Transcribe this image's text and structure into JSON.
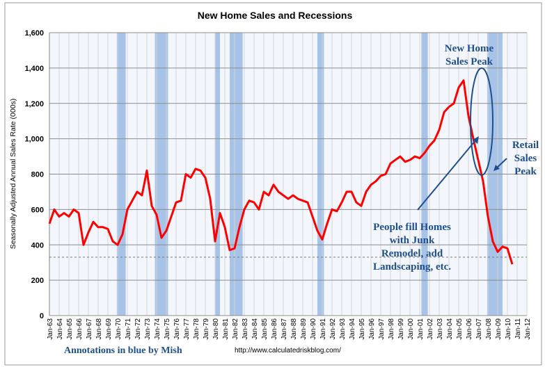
{
  "chart_data": {
    "type": "line",
    "title": "New Home Sales and Recessions",
    "xlabel": "",
    "ylabel": "Seasonally Adjusted Annual Sales Rate (000s)",
    "ylim": [
      0,
      1600
    ],
    "yticks": [
      "0",
      "200",
      "400",
      "600",
      "800",
      "1,000",
      "1,200",
      "1,400",
      "1,600"
    ],
    "xlim": [
      1963,
      2012
    ],
    "xtick_labels": [
      "Jan-63",
      "Jan-64",
      "Jan-65",
      "Jan-66",
      "Jan-67",
      "Jan-68",
      "Jan-69",
      "Jan-70",
      "Jan-71",
      "Jan-72",
      "Jan-73",
      "Jan-74",
      "Jan-75",
      "Jan-76",
      "Jan-77",
      "Jan-78",
      "Jan-79",
      "Jan-80",
      "Jan-81",
      "Jan-82",
      "Jan-83",
      "Jan-84",
      "Jan-85",
      "Jan-86",
      "Jan-87",
      "Jan-88",
      "Jan-89",
      "Jan-90",
      "Jan-91",
      "Jan-92",
      "Jan-93",
      "Jan-94",
      "Jan-95",
      "Jan-96",
      "Jan-97",
      "Jan-98",
      "Jan-99",
      "Jan-00",
      "Jan-01",
      "Jan-02",
      "Jan-03",
      "Jan-04",
      "Jan-05",
      "Jan-06",
      "Jan-07",
      "Jan-08",
      "Jan-09",
      "Jan-10",
      "Jan-11",
      "Jan-12"
    ],
    "grid": true,
    "series": [
      {
        "name": "New Home Sales",
        "color": "#ff0000",
        "x_start": 1963,
        "x_step": 0.5,
        "values": [
          520,
          600,
          560,
          580,
          560,
          600,
          580,
          400,
          470,
          530,
          500,
          500,
          490,
          420,
          400,
          460,
          600,
          650,
          700,
          680,
          820,
          620,
          570,
          440,
          480,
          560,
          640,
          650,
          800,
          780,
          830,
          820,
          780,
          660,
          420,
          580,
          500,
          370,
          380,
          500,
          600,
          650,
          640,
          600,
          700,
          680,
          740,
          700,
          680,
          660,
          680,
          660,
          650,
          640,
          560,
          480,
          430,
          520,
          600,
          590,
          640,
          700,
          700,
          640,
          620,
          700,
          740,
          760,
          790,
          800,
          860,
          880,
          900,
          870,
          880,
          900,
          890,
          920,
          960,
          990,
          1050,
          1150,
          1180,
          1200,
          1290,
          1330,
          1130,
          1000,
          880,
          760,
          560,
          420,
          360,
          390,
          380,
          290
        ]
      }
    ],
    "recessions": [
      [
        1969.92,
        1970.83
      ],
      [
        1973.83,
        1975.17
      ],
      [
        1980.0,
        1980.5
      ],
      [
        1981.5,
        1982.83
      ],
      [
        1990.5,
        1991.17
      ],
      [
        2001.17,
        2001.83
      ],
      [
        2007.92,
        2009.5
      ]
    ],
    "reference_line": {
      "value": 330,
      "style": "dashed"
    },
    "annotations": {
      "peak": [
        "New Home",
        "Sales Peak"
      ],
      "retail": [
        "Retail",
        "Sales",
        "Peak"
      ],
      "junk": [
        "People fill Homes",
        "with Junk",
        "Remodel, add",
        "Landscaping, etc."
      ]
    }
  },
  "footer": {
    "credit": "Annotations in blue by Mish",
    "url": "http://www.calculatedriskblog.com/"
  },
  "colors": {
    "recession": "#a7c3e8",
    "annotation": "#1f4e8c",
    "plot_bg": "#f3f7fd"
  }
}
